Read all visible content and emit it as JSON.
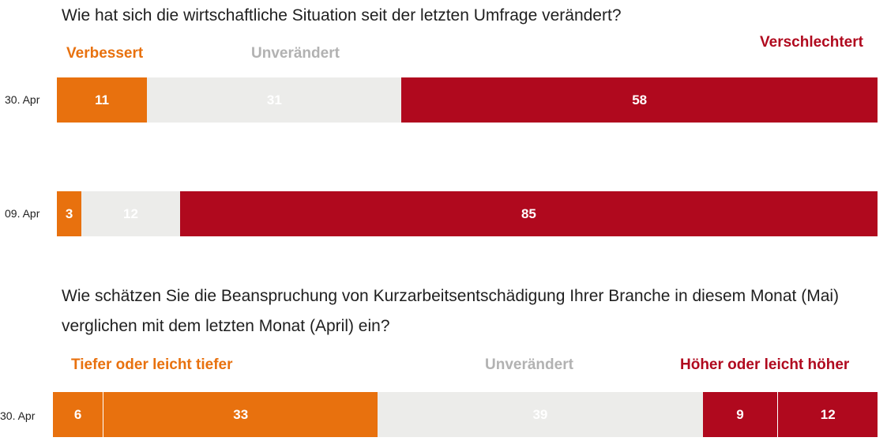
{
  "colors": {
    "orange": "#e8710e",
    "light_gray": "#ececea",
    "gray_text": "#b2b2b2",
    "red": "#b0091e",
    "white": "#ffffff"
  },
  "chart_data": [
    {
      "type": "bar",
      "orientation": "horizontal-stacked-100",
      "title": "Wie hat sich die wirtschaftliche Situation seit der letzten Umfrage verändert?",
      "legend": [
        "Verbessert",
        "Unverändert",
        "Verschlechtert"
      ],
      "categories": [
        "30. Apr",
        "09. Apr"
      ],
      "series": [
        {
          "name": "Verbessert",
          "values": [
            11,
            3
          ]
        },
        {
          "name": "Unverändert",
          "values": [
            31,
            12
          ]
        },
        {
          "name": "Verschlechtert",
          "values": [
            58,
            85
          ]
        }
      ]
    },
    {
      "type": "bar",
      "orientation": "horizontal-stacked-100",
      "title_lines": [
        "Wie schätzen Sie die Beanspruchung von Kurzarbeitsentschädigung Ihrer Branche in diesem Monat (Mai)",
        "verglichen mit dem letzten Monat (April) ein?"
      ],
      "legend": [
        "Tiefer oder leicht tiefer",
        "Unverändert",
        "Höher oder leicht höher"
      ],
      "categories": [
        "30. Apr"
      ],
      "series": [
        {
          "values": [
            6
          ]
        },
        {
          "values": [
            33
          ]
        },
        {
          "values": [
            39
          ]
        },
        {
          "values": [
            9
          ]
        },
        {
          "values": [
            12
          ]
        }
      ]
    }
  ]
}
